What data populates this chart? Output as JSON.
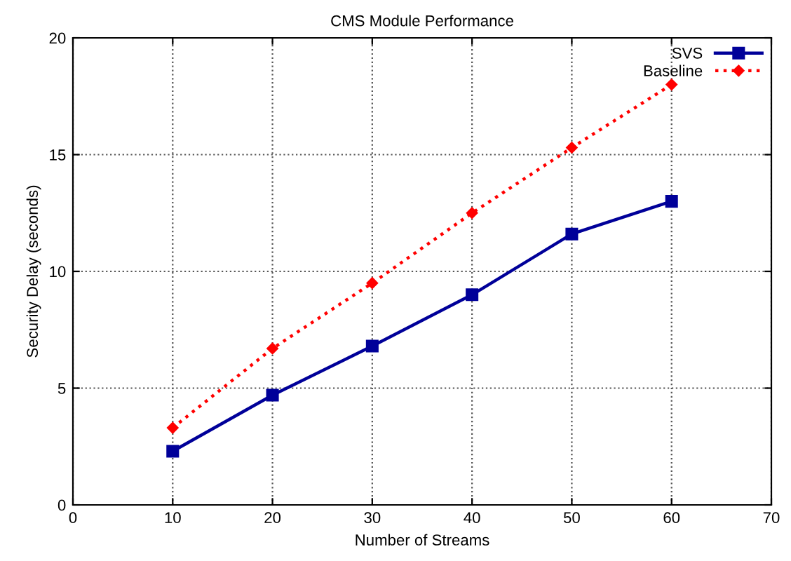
{
  "chart_data": {
    "type": "line",
    "title": "CMS Module Performance",
    "xlabel": "Number of Streams",
    "ylabel": "Security Delay (seconds)",
    "x": [
      10,
      20,
      30,
      40,
      50,
      60
    ],
    "series": [
      {
        "name": "SVS",
        "color": "#000099",
        "marker": "square",
        "line_style": "solid",
        "values": [
          2.3,
          4.7,
          6.8,
          9.0,
          11.6,
          13.0
        ]
      },
      {
        "name": "Baseline",
        "color": "#ff0000",
        "marker": "diamond",
        "line_style": "dotted",
        "values": [
          3.3,
          6.7,
          9.5,
          12.5,
          15.3,
          18.0
        ]
      }
    ],
    "xlim": [
      0,
      70
    ],
    "xticks": [
      0,
      10,
      20,
      30,
      40,
      50,
      60,
      70
    ],
    "ylim": [
      0,
      20
    ],
    "yticks": [
      0,
      5,
      10,
      15,
      20
    ],
    "grid": true,
    "legend": "top right"
  }
}
